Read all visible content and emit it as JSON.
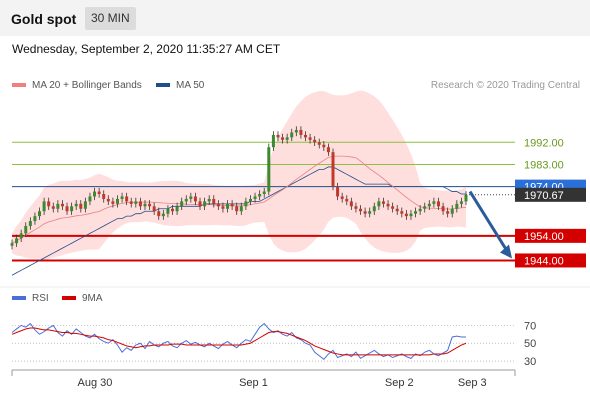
{
  "header": {
    "title": "Gold spot",
    "timeframe": "30 MIN"
  },
  "datetime": "Wednesday, September 2, 2020 11:35:27 AM CET",
  "legend": {
    "ma20": "MA 20 + Bollinger Bands",
    "ma50": "MA 50",
    "rsi": "RSI",
    "ma9": "9MA"
  },
  "credit": "Research © 2020 Trading Central",
  "colors": {
    "accent_blue": "#1f4e8c",
    "support_red": "#d40000",
    "resistance_green": "#8cc040",
    "candle_up": "#3a8a2e",
    "candle_down": "#c0392b",
    "band_fill": "#ffd0d0",
    "ma20": "#e88080",
    "rsi": "#4a6fd8"
  },
  "chart_data": [
    {
      "type": "candlestick",
      "y_range": [
        1932,
        2010
      ],
      "x_labels": [
        "Aug 30",
        "Sep 1",
        "Sep 2",
        "Sep 3"
      ],
      "levels": [
        {
          "label": "1992.00",
          "value": 1992,
          "kind": "resistance"
        },
        {
          "label": "1983.00",
          "value": 1983,
          "kind": "resistance"
        },
        {
          "label": "1974.00",
          "value": 1974,
          "kind": "pivot"
        },
        {
          "label": "1970.67",
          "value": 1970.67,
          "kind": "last"
        },
        {
          "label": "1954.00",
          "value": 1954,
          "kind": "support"
        },
        {
          "label": "1944.00",
          "value": 1944,
          "kind": "support"
        }
      ],
      "close_series": [
        1951,
        1953,
        1955,
        1958,
        1960,
        1962,
        1964,
        1968,
        1966,
        1965,
        1967,
        1966,
        1964,
        1966,
        1967,
        1965,
        1968,
        1970,
        1972,
        1971,
        1969,
        1968,
        1967,
        1969,
        1970,
        1968,
        1967,
        1968,
        1966,
        1967,
        1966,
        1964,
        1962,
        1963,
        1965,
        1964,
        1966,
        1968,
        1969,
        1970,
        1968,
        1966,
        1968,
        1969,
        1967,
        1966,
        1965,
        1967,
        1966,
        1964,
        1966,
        1968,
        1969,
        1970,
        1971,
        1972,
        1990,
        1995,
        1994,
        1993,
        1994,
        1996,
        1997,
        1995,
        1994,
        1993,
        1992,
        1991,
        1990,
        1988,
        1974,
        1970,
        1969,
        1968,
        1966,
        1965,
        1964,
        1963,
        1964,
        1966,
        1968,
        1967,
        1966,
        1965,
        1964,
        1963,
        1962,
        1963,
        1964,
        1965,
        1966,
        1967,
        1968,
        1966,
        1964,
        1963,
        1965,
        1967,
        1968,
        1970.67
      ],
      "ma50": [
        1938,
        1939,
        1940,
        1941,
        1942,
        1943,
        1944,
        1945,
        1946,
        1947,
        1948,
        1949,
        1950,
        1951,
        1952,
        1953,
        1954,
        1955,
        1956,
        1957,
        1958,
        1959,
        1960,
        1961,
        1961,
        1962,
        1962,
        1963,
        1963,
        1964,
        1964,
        1964,
        1965,
        1965,
        1965,
        1966,
        1966,
        1966,
        1966,
        1966,
        1966,
        1966,
        1967,
        1967,
        1967,
        1967,
        1967,
        1967,
        1967,
        1967,
        1967,
        1967,
        1968,
        1968,
        1968,
        1969,
        1970,
        1971,
        1972,
        1973,
        1974,
        1975,
        1976,
        1977,
        1978,
        1979,
        1980,
        1981,
        1981,
        1982,
        1982,
        1981,
        1980,
        1979,
        1978,
        1977,
        1976,
        1975,
        1975,
        1975,
        1975,
        1975,
        1975,
        1974,
        1974,
        1974,
        1974,
        1974,
        1974,
        1974,
        1974,
        1974,
        1974,
        1974,
        1974,
        1973,
        1972,
        1972,
        1971,
        1971
      ]
    },
    {
      "type": "line",
      "y_ticks": [
        70,
        50,
        30
      ],
      "y_range": [
        20,
        85
      ],
      "series": [
        {
          "name": "RSI",
          "values": [
            62,
            66,
            70,
            68,
            72,
            65,
            60,
            63,
            67,
            70,
            62,
            58,
            64,
            60,
            66,
            62,
            58,
            56,
            60,
            55,
            52,
            50,
            54,
            48,
            40,
            45,
            42,
            48,
            50,
            44,
            52,
            48,
            46,
            50,
            52,
            47,
            45,
            50,
            53,
            49,
            51,
            48,
            46,
            50,
            47,
            44,
            49,
            52,
            48,
            45,
            50,
            54,
            52,
            60,
            68,
            72,
            66,
            62,
            64,
            60,
            58,
            62,
            56,
            54,
            50,
            48,
            40,
            36,
            32,
            38,
            42,
            34,
            36,
            38,
            35,
            40,
            33,
            36,
            39,
            42,
            38,
            35,
            37,
            34,
            36,
            38,
            35,
            33,
            38,
            36,
            40,
            42,
            38,
            36,
            39,
            42,
            57,
            58,
            57,
            57
          ]
        },
        {
          "name": "9MA",
          "values": [
            60,
            62,
            64,
            66,
            67,
            67,
            66,
            65,
            65,
            64,
            63,
            62,
            62,
            61,
            61,
            60,
            59,
            58,
            58,
            57,
            56,
            54,
            53,
            51,
            49,
            47,
            46,
            45,
            46,
            47,
            47,
            48,
            48,
            48,
            48,
            49,
            49,
            49,
            48,
            48,
            48,
            48,
            48,
            48,
            48,
            48,
            48,
            48,
            48,
            48,
            48,
            49,
            50,
            53,
            56,
            59,
            62,
            63,
            63,
            62,
            61,
            59,
            57,
            55,
            53,
            50,
            47,
            45,
            43,
            41,
            39,
            38,
            37,
            37,
            37,
            37,
            37,
            37,
            37,
            37,
            37,
            37,
            37,
            37,
            37,
            37,
            37,
            37,
            37,
            37,
            37,
            37,
            38,
            38,
            38,
            39,
            42,
            45,
            48,
            50
          ]
        }
      ]
    }
  ]
}
